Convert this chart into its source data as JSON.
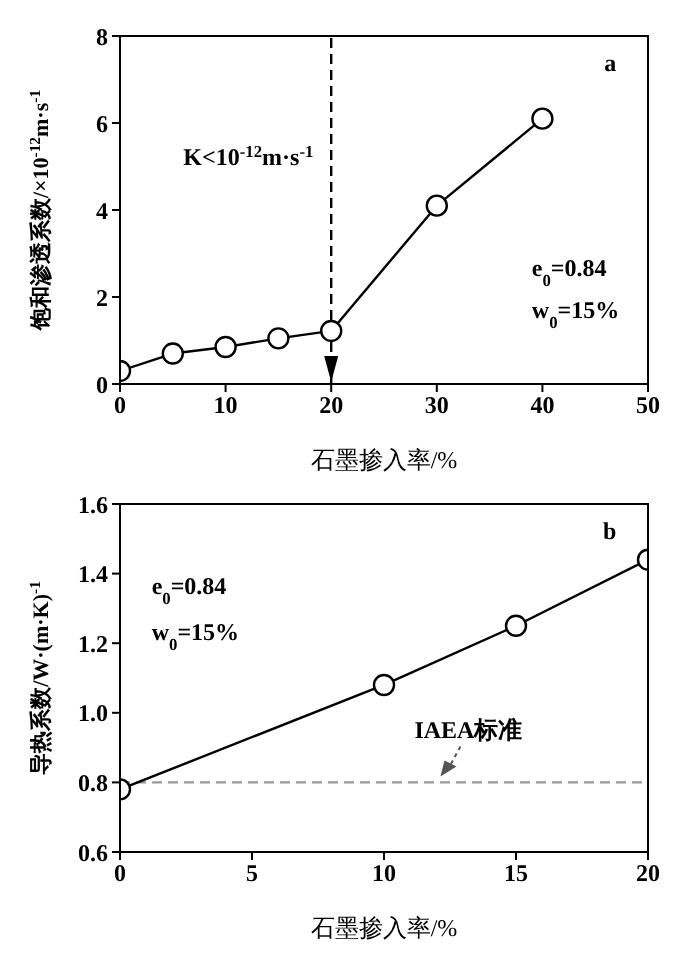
{
  "chart_data": [
    {
      "type": "line",
      "xlabel": "石墨掺入率/%",
      "ylabel": "饱和渗透系数/×10$^{-12}$m·s$^{-1}$",
      "x": [
        0,
        5,
        10,
        15,
        20,
        30,
        40
      ],
      "series": [
        {
          "color": "#000000",
          "values": [
            0.3,
            0.7,
            0.85,
            1.05,
            1.22,
            4.1,
            6.1
          ]
        }
      ],
      "xlim": [
        0,
        50
      ],
      "xticks": [
        0,
        10,
        20,
        30,
        40,
        50
      ],
      "ylim": [
        0,
        8
      ],
      "yticks": [
        0,
        2,
        4,
        6,
        8
      ],
      "marker": "circle",
      "line_style": "solid",
      "ref_lines": [
        {
          "axis": "x",
          "value": 20,
          "color": "#000000",
          "line_style": "dashed"
        }
      ],
      "annotations": [
        "a",
        "K<10$^{-12}$m·s$^{-1}$",
        "e$_{0}$=0.84",
        "w$_{0}$=15%"
      ]
    },
    {
      "type": "line",
      "xlabel": "石墨掺入率/%",
      "ylabel": "导热系数/W·(m·K)$^{-1}$",
      "x": [
        0,
        10,
        15,
        20
      ],
      "series": [
        {
          "color": "#000000",
          "values": [
            0.78,
            1.08,
            1.25,
            1.44
          ]
        }
      ],
      "xlim": [
        0,
        20
      ],
      "xticks": [
        0,
        5,
        10,
        15,
        20
      ],
      "ylim": [
        0.6,
        1.6
      ],
      "yticks": [
        0.6,
        0.8,
        {
          "value": 1,
          "label": "1.0"
        },
        1.2,
        1.4,
        1.6
      ],
      "marker": "circle",
      "line_style": "solid",
      "ref_lines": [
        {
          "axis": "y",
          "value": 0.8,
          "color": "#999999",
          "line_style": "dashed",
          "label": "IAEA标准"
        }
      ],
      "annotations": [
        "b",
        "e$_{0}$=0.84",
        "w$_{0}$=15%"
      ]
    }
  ]
}
